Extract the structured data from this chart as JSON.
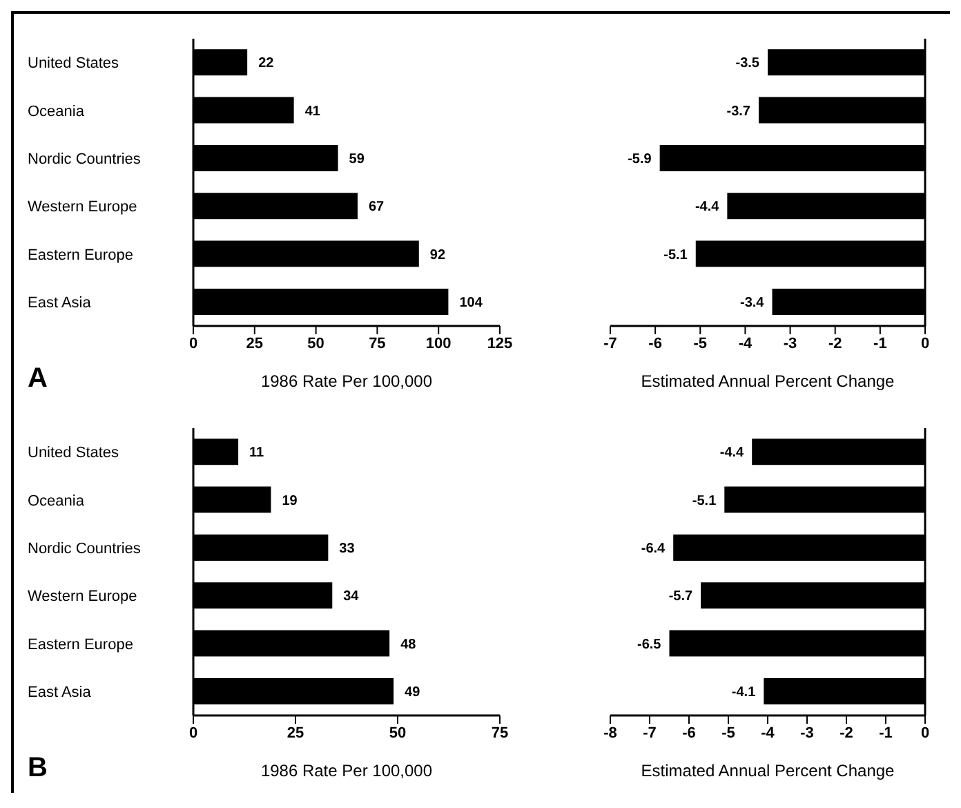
{
  "chart_data": [
    {
      "type": "bar",
      "orientation": "horizontal",
      "categories": [
        "United States",
        "Oceania",
        "Nordic Countries",
        "Western Europe",
        "Eastern Europe",
        "East Asia"
      ],
      "values": [
        22,
        41,
        59,
        67,
        92,
        104
      ],
      "color": "#000000",
      "xlim": [
        0,
        125
      ],
      "xticks": [
        0,
        25,
        50,
        75,
        100,
        125
      ],
      "xlabel": "1986 Rate Per 100,000",
      "data_labels": true,
      "annotations": [
        "A"
      ]
    },
    {
      "type": "bar",
      "orientation": "horizontal",
      "categories": [
        null,
        null,
        null,
        null,
        null,
        null
      ],
      "values": [
        -3.5,
        -3.7,
        -5.9,
        -4.4,
        -5.1,
        -3.4
      ],
      "color": "#000000",
      "xlim": [
        -7,
        0
      ],
      "xticks": [
        -7,
        -6,
        -5,
        -4,
        -3,
        -2,
        -1,
        0
      ],
      "xlabel": "Estimated Annual Percent Change",
      "data_labels": true,
      "tick_labels": "x"
    },
    {
      "type": "bar",
      "orientation": "horizontal",
      "categories": [
        "United States",
        "Oceania",
        "Nordic Countries",
        "Western Europe",
        "Eastern Europe",
        "East Asia"
      ],
      "values": [
        11,
        19,
        33,
        34,
        48,
        49
      ],
      "color": "#000000",
      "xlim": [
        0,
        75
      ],
      "xticks": [
        0,
        25,
        50,
        75
      ],
      "xlabel": "1986 Rate Per 100,000",
      "data_labels": true,
      "annotations": [
        "B"
      ]
    },
    {
      "type": "bar",
      "orientation": "horizontal",
      "categories": [
        null,
        null,
        null,
        null,
        null,
        null
      ],
      "values": [
        -4.4,
        -5.1,
        -6.4,
        -5.7,
        -6.5,
        -4.1
      ],
      "color": "#000000",
      "xlim": [
        -8,
        0
      ],
      "xticks": [
        -8,
        -7,
        -6,
        -5,
        -4,
        -3,
        -2,
        -1,
        0
      ],
      "xlabel": "Estimated Annual Percent Change",
      "data_labels": true,
      "tick_labels": "x"
    }
  ]
}
